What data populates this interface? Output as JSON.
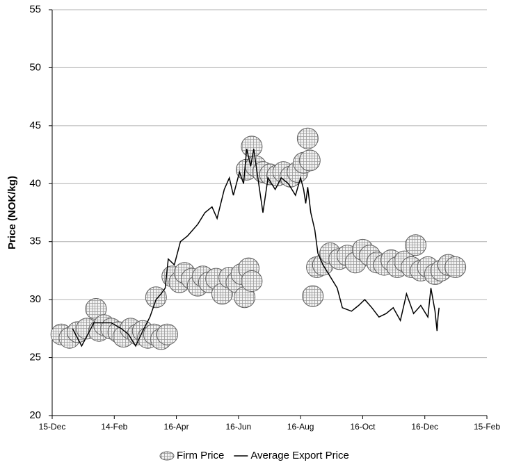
{
  "chart_data": {
    "type": "scatter",
    "y_label": "Price (NOK/kg)",
    "xlim": [
      0,
      427
    ],
    "xticks": [
      {
        "value": 0,
        "label": "15-Dec"
      },
      {
        "value": 61,
        "label": "14-Feb"
      },
      {
        "value": 122,
        "label": "16-Apr"
      },
      {
        "value": 183,
        "label": "16-Jun"
      },
      {
        "value": 244,
        "label": "16-Aug"
      },
      {
        "value": 305,
        "label": "16-Oct"
      },
      {
        "value": 366,
        "label": "16-Dec"
      },
      {
        "value": 427,
        "label": "15-Feb"
      }
    ],
    "ylim": [
      20,
      55
    ],
    "yticks": [
      20,
      25,
      30,
      35,
      40,
      45,
      50,
      55
    ],
    "grid": true,
    "legend": "bottom",
    "series": [
      {
        "name": "Firm Price",
        "type": "scatter",
        "color": "#606060",
        "x": [
          9,
          17,
          25,
          34,
          43,
          46,
          51,
          58,
          65,
          70,
          77,
          84,
          89,
          94,
          100,
          107,
          113,
          102,
          118,
          125,
          130,
          137,
          143,
          148,
          154,
          161,
          167,
          174,
          181,
          186,
          189,
          193,
          196,
          191,
          196,
          200,
          207,
          214,
          221,
          227,
          234,
          241,
          247,
          251,
          253,
          256,
          260,
          266,
          273,
          282,
          290,
          298,
          305,
          312,
          319,
          326,
          333,
          339,
          346,
          353,
          357,
          362,
          369,
          376,
          382,
          389,
          396
        ],
        "values": [
          27.0,
          26.7,
          27.2,
          27.5,
          29.2,
          27.3,
          27.8,
          27.5,
          27.2,
          26.8,
          27.5,
          27.0,
          27.3,
          26.7,
          27.0,
          26.6,
          27.0,
          30.2,
          32.0,
          31.5,
          32.3,
          31.8,
          31.2,
          32.0,
          31.5,
          31.8,
          30.5,
          31.9,
          31.5,
          32.2,
          30.2,
          32.7,
          31.6,
          41.2,
          43.2,
          41.5,
          41.0,
          40.8,
          40.7,
          41.0,
          40.6,
          41.0,
          41.8,
          43.9,
          42.0,
          30.3,
          32.8,
          33.0,
          34.0,
          33.5,
          33.8,
          33.2,
          34.3,
          33.8,
          33.2,
          33.0,
          33.4,
          32.8,
          33.3,
          32.8,
          34.7,
          32.5,
          32.8,
          32.2,
          32.5,
          33.0,
          32.8
        ]
      },
      {
        "name": "Average Export Price",
        "type": "line",
        "color": "#000000",
        "x": [
          20,
          29,
          41,
          58,
          68,
          75,
          82,
          89,
          96,
          102,
          107,
          111,
          114,
          120,
          126,
          133,
          143,
          150,
          157,
          162,
          169,
          174,
          178,
          184,
          188,
          191,
          195,
          198,
          202,
          207,
          212,
          219,
          225,
          232,
          239,
          244,
          247,
          249,
          251,
          254,
          258,
          261,
          266,
          273,
          280,
          285,
          294,
          301,
          307,
          314,
          321,
          328,
          335,
          342,
          348,
          355,
          362,
          369,
          372,
          376,
          378,
          379,
          380
        ],
        "values": [
          27.5,
          26.0,
          28.0,
          28.0,
          27.5,
          27.0,
          26.0,
          27.3,
          28.5,
          30.0,
          30.5,
          31.0,
          33.5,
          33.0,
          35.0,
          35.5,
          36.5,
          37.5,
          38.0,
          37.0,
          39.5,
          40.5,
          39.0,
          41.0,
          40.0,
          43.0,
          41.5,
          43.0,
          40.5,
          37.5,
          40.5,
          39.5,
          40.5,
          40.0,
          39.0,
          40.5,
          39.5,
          38.3,
          39.7,
          37.5,
          36.0,
          34.0,
          33.0,
          32.0,
          31.0,
          29.3,
          29.0,
          29.5,
          30.0,
          29.3,
          28.5,
          28.8,
          29.3,
          28.2,
          30.5,
          28.8,
          29.5,
          28.5,
          31.0,
          29.0,
          27.3,
          28.5,
          29.3
        ]
      }
    ]
  }
}
